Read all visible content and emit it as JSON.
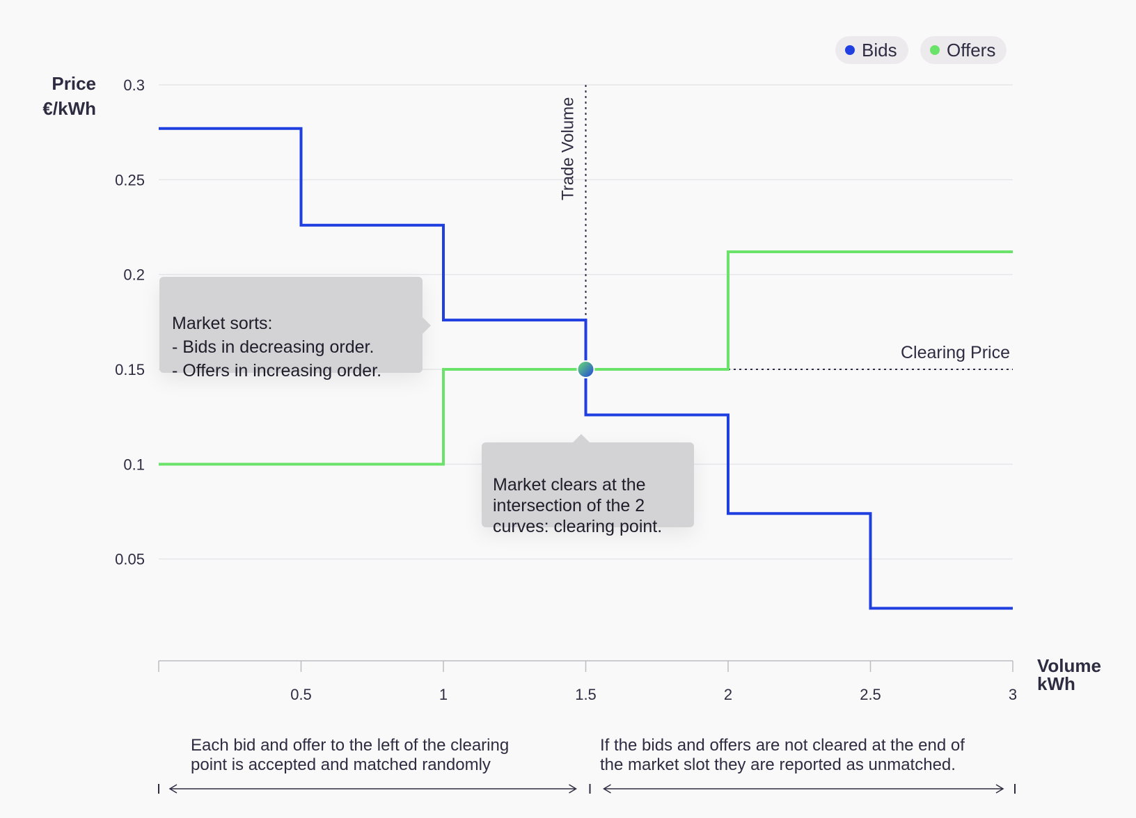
{
  "chart_data": {
    "type": "line",
    "step": true,
    "xlabel": "Volume\nkWh",
    "ylabel": "Price\n€/kWh",
    "xlim": [
      0,
      3
    ],
    "ylim": [
      0,
      0.3
    ],
    "x_ticks": [
      0.5,
      1,
      1.5,
      2,
      2.5,
      3
    ],
    "x_tick_labels": [
      "0.5",
      "1",
      "1.5",
      "2",
      "2.5",
      "3"
    ],
    "y_ticks": [
      0.05,
      0.1,
      0.15,
      0.2,
      0.25,
      0.3
    ],
    "y_tick_labels": [
      "0.05",
      "0.1",
      "0.15",
      "0.2",
      "0.25",
      "0.3"
    ],
    "grid": true,
    "legend_position": "top-right",
    "series": [
      {
        "name": "Bids",
        "color": "#1f3fe0",
        "steps": [
          {
            "x0": 0,
            "x1": 0.5,
            "y": 0.277
          },
          {
            "x0": 0.5,
            "x1": 1,
            "y": 0.226
          },
          {
            "x0": 1,
            "x1": 1.5,
            "y": 0.176
          },
          {
            "x0": 1.5,
            "x1": 2,
            "y": 0.126
          },
          {
            "x0": 2,
            "x1": 2.5,
            "y": 0.074
          },
          {
            "x0": 2.5,
            "x1": 3,
            "y": 0.024
          }
        ]
      },
      {
        "name": "Offers",
        "color": "#6be36b",
        "steps": [
          {
            "x0": 0,
            "x1": 1,
            "y": 0.1
          },
          {
            "x0": 1,
            "x1": 2,
            "y": 0.15
          },
          {
            "x0": 2,
            "x1": 3,
            "y": 0.212
          }
        ]
      }
    ],
    "clearing_point": {
      "x": 1.5,
      "y": 0.15
    },
    "annotations": {
      "trade_volume": "Trade Volume",
      "clearing_price": "Clearing Price"
    }
  },
  "callouts": {
    "market_sorts": "Market sorts:\n- Bids in decreasing order.\n- Offers in increasing order.",
    "market_clears": "Market clears at the\nintersection of the 2\ncurves: clearing point."
  },
  "notes": {
    "left": "Each bid and offer to the left of the clearing\npoint is accepted and matched randomly",
    "right": "If the bids and offers are not cleared at the end of\nthe market slot they are reported as unmatched."
  },
  "colors": {
    "bids": "#1f3fe0",
    "offers": "#6be36b",
    "grid": "#e6e5e8",
    "axis": "#bdbcc2",
    "callout_bg": "#d3d2d4"
  }
}
